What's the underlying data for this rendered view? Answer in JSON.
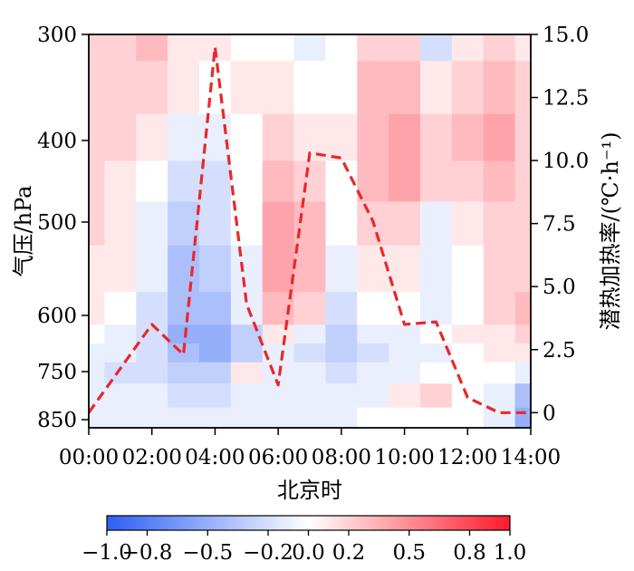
{
  "chart_data": {
    "type": "heatmap",
    "xlabel": "北京时",
    "ylabel_left": "气压/hPa",
    "ylabel_right": "潜热加热率/(℃·h⁻¹)",
    "x_ticks": [
      "00:00",
      "02:00",
      "04:00",
      "06:00",
      "08:00",
      "10:00",
      "12:00",
      "14:00"
    ],
    "pressure_ticks": [
      300,
      400,
      500,
      600,
      750,
      850
    ],
    "right_ticks": [
      "0",
      "2.5",
      "5.0",
      "7.5",
      "10.0",
      "12.5",
      "15.0"
    ],
    "right_ylim": [
      -0.6,
      15.0
    ],
    "colorbar": {
      "ticks": [
        "−1.0",
        "−0.8",
        "−0.5",
        "−0.2",
        "0.0",
        "0.2",
        "0.5",
        "0.8",
        "1.0"
      ],
      "range": [
        -1.0,
        1.0
      ],
      "colors": {
        "neg": "#2d5ef5",
        "zero": "#ffffff",
        "pos": "#ff1a2a"
      }
    },
    "line_series": {
      "style": "dashed",
      "color": "#e8282a",
      "x_hours": [
        0,
        2,
        3,
        4,
        5,
        6,
        7,
        8,
        9,
        10,
        11,
        12,
        13,
        14
      ],
      "y": [
        0.0,
        3.5,
        2.3,
        14.5,
        4.3,
        1.1,
        10.3,
        10.1,
        7.6,
        3.5,
        3.6,
        0.6,
        0.0,
        0.0
      ]
    },
    "heatmap": {
      "x_hours": [
        0,
        1,
        2,
        3,
        4,
        5,
        6,
        7,
        8,
        9,
        10,
        11,
        12,
        13,
        14
      ],
      "pressure_rows": [
        300,
        350,
        400,
        450,
        500,
        550,
        600,
        650,
        700,
        750,
        800,
        850
      ],
      "values": [
        [
          0.15,
          0.2,
          0.25,
          0.1,
          0.05,
          -0.05,
          0.0,
          -0.1,
          -0.05,
          0.15,
          0.2,
          -0.2,
          0.1,
          0.15,
          0.1
        ],
        [
          0.15,
          0.2,
          0.2,
          0.05,
          -0.05,
          0.05,
          0.1,
          -0.05,
          0.0,
          0.25,
          0.3,
          0.1,
          0.2,
          0.25,
          0.15
        ],
        [
          0.2,
          0.15,
          0.1,
          -0.1,
          -0.15,
          0.0,
          0.15,
          0.1,
          0.05,
          0.3,
          0.4,
          0.2,
          0.3,
          0.4,
          0.2
        ],
        [
          0.15,
          0.1,
          -0.05,
          -0.25,
          -0.2,
          -0.05,
          0.25,
          0.2,
          0.0,
          0.25,
          0.35,
          0.15,
          0.2,
          0.3,
          0.15
        ],
        [
          0.15,
          0.1,
          -0.1,
          -0.35,
          -0.25,
          -0.05,
          0.35,
          0.25,
          -0.05,
          0.15,
          0.2,
          -0.1,
          0.05,
          0.2,
          0.15
        ],
        [
          0.1,
          0.05,
          -0.15,
          -0.4,
          -0.3,
          -0.1,
          0.4,
          0.3,
          -0.1,
          0.1,
          0.05,
          -0.15,
          -0.05,
          0.15,
          0.2
        ],
        [
          0.05,
          0.0,
          -0.2,
          -0.45,
          -0.4,
          -0.15,
          0.3,
          0.15,
          -0.2,
          0.0,
          -0.05,
          -0.1,
          0.0,
          0.15,
          0.25
        ],
        [
          -0.05,
          -0.1,
          -0.25,
          -0.5,
          -0.55,
          -0.3,
          0.1,
          -0.1,
          -0.3,
          -0.15,
          -0.1,
          -0.05,
          0.05,
          0.1,
          0.2
        ],
        [
          -0.1,
          -0.15,
          -0.25,
          -0.45,
          -0.5,
          -0.35,
          -0.1,
          -0.2,
          -0.35,
          -0.25,
          -0.15,
          -0.1,
          0.0,
          0.05,
          0.1
        ],
        [
          -0.15,
          -0.2,
          -0.2,
          -0.3,
          -0.35,
          0.1,
          -0.15,
          -0.15,
          -0.2,
          -0.15,
          -0.1,
          -0.05,
          -0.05,
          -0.05,
          -0.1
        ],
        [
          -0.15,
          -0.15,
          -0.15,
          -0.2,
          -0.2,
          -0.15,
          -0.1,
          -0.1,
          -0.15,
          -0.1,
          0.1,
          0.15,
          -0.05,
          -0.1,
          -0.4
        ],
        [
          -0.1,
          -0.1,
          -0.1,
          -0.15,
          -0.15,
          -0.1,
          -0.1,
          -0.1,
          -0.1,
          -0.05,
          -0.05,
          0.0,
          -0.05,
          -0.15,
          -0.5
        ]
      ]
    }
  }
}
